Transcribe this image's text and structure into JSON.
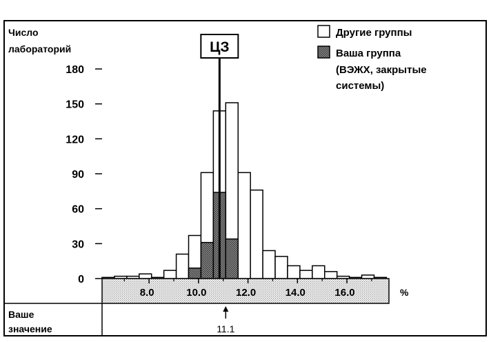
{
  "chart_data": {
    "type": "bar",
    "ylabel": [
      "Число",
      "лабораторий"
    ],
    "xunit": "%",
    "ylim": [
      0,
      180
    ],
    "yticks": [
      0,
      30,
      60,
      90,
      120,
      150,
      180
    ],
    "xticks": [
      "8.0",
      "10.0",
      "12.0",
      "14.0",
      "16.0"
    ],
    "xtick_values": [
      8,
      10,
      12,
      14,
      16
    ],
    "xlim": [
      6.1,
      17.7
    ],
    "bin_width": 0.5,
    "bins_start": [
      6.1,
      6.6,
      7.1,
      7.6,
      8.1,
      8.6,
      9.1,
      9.6,
      10.1,
      10.6,
      11.1,
      11.6,
      12.1,
      12.6,
      13.1,
      13.6,
      14.1,
      14.6,
      15.1,
      15.6,
      16.1,
      16.6,
      17.1
    ],
    "series": [
      {
        "name": "Другие группы",
        "values": [
          1,
          2,
          2,
          4,
          1,
          7,
          21,
          37,
          91,
          144,
          151,
          91,
          76,
          24,
          19,
          11,
          7,
          11,
          6,
          2,
          1,
          3,
          1
        ],
        "color": "#ffffff"
      },
      {
        "name": "Ваша группа (ВЭЖХ, закрытые системы)",
        "values": [
          0,
          0,
          0,
          0,
          0,
          0,
          0,
          9,
          31,
          74,
          34,
          0,
          0,
          0,
          0,
          0,
          0,
          0,
          0,
          0,
          0,
          0,
          0
        ],
        "color": "#7a7a7a"
      }
    ],
    "legend": {
      "position": "top-right",
      "items": [
        "Другие группы",
        "Ваша группа",
        "(ВЭЖХ, закрытые",
        "системы)"
      ]
    },
    "reference_line": {
      "label": "ЦЗ",
      "value": 10.85
    },
    "your_value": {
      "label": [
        "Ваше",
        "значение"
      ],
      "value": 11.1,
      "text": "11.1"
    }
  }
}
